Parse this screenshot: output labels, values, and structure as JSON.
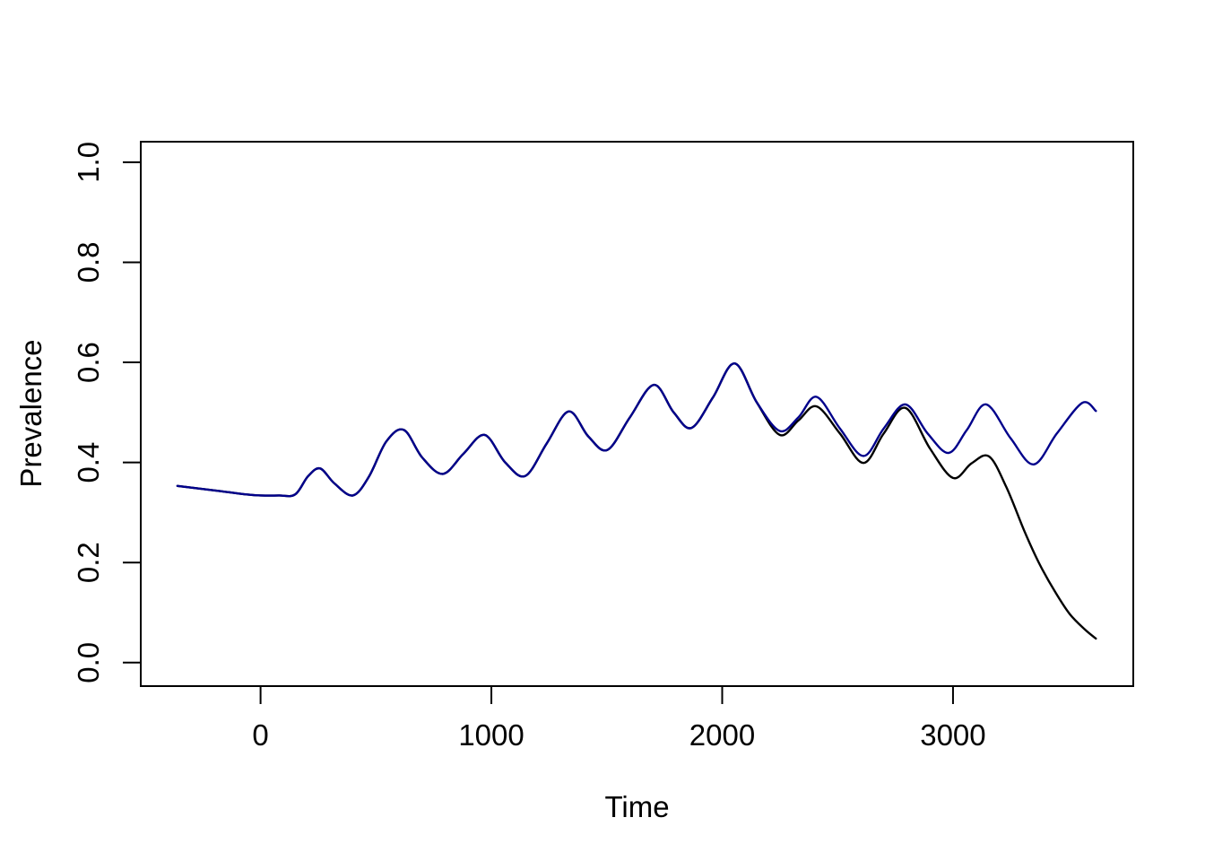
{
  "chart_data": {
    "type": "line",
    "title": "",
    "xlabel": "Time",
    "ylabel": "Prevalence",
    "xlim": [
      -519,
      3781
    ],
    "ylim": [
      -0.047,
      1.041
    ],
    "grid": false,
    "legend": "none",
    "background": "#ffffff",
    "axis_color": "#000000",
    "x_ticks": [
      {
        "v": 0,
        "label": "0"
      },
      {
        "v": 1000,
        "label": "1000"
      },
      {
        "v": 2000,
        "label": "2000"
      },
      {
        "v": 3000,
        "label": "3000"
      }
    ],
    "y_ticks": [
      {
        "v": 0.0,
        "label": "0.0"
      },
      {
        "v": 0.2,
        "label": "0.2"
      },
      {
        "v": 0.4,
        "label": "0.4"
      },
      {
        "v": 0.6,
        "label": "0.6"
      },
      {
        "v": 0.8,
        "label": "0.8"
      },
      {
        "v": 1.0,
        "label": "1.0"
      }
    ],
    "series": [
      {
        "name": "black-line",
        "color": "#000000",
        "points": [
          [
            -360,
            0.353
          ],
          [
            -180,
            0.343
          ],
          [
            -60,
            0.336
          ],
          [
            0,
            0.334
          ],
          [
            80,
            0.334
          ],
          [
            150,
            0.336
          ],
          [
            205,
            0.372
          ],
          [
            258,
            0.388
          ],
          [
            320,
            0.358
          ],
          [
            400,
            0.334
          ],
          [
            470,
            0.372
          ],
          [
            545,
            0.442
          ],
          [
            621,
            0.465
          ],
          [
            700,
            0.41
          ],
          [
            790,
            0.377
          ],
          [
            880,
            0.418
          ],
          [
            971,
            0.455
          ],
          [
            1060,
            0.4
          ],
          [
            1147,
            0.373
          ],
          [
            1240,
            0.438
          ],
          [
            1335,
            0.502
          ],
          [
            1420,
            0.452
          ],
          [
            1503,
            0.425
          ],
          [
            1600,
            0.49
          ],
          [
            1704,
            0.555
          ],
          [
            1790,
            0.5
          ],
          [
            1867,
            0.469
          ],
          [
            1960,
            0.53
          ],
          [
            2054,
            0.598
          ],
          [
            2150,
            0.52
          ],
          [
            2249,
            0.455
          ],
          [
            2330,
            0.484
          ],
          [
            2409,
            0.512
          ],
          [
            2510,
            0.458
          ],
          [
            2612,
            0.399
          ],
          [
            2700,
            0.458
          ],
          [
            2794,
            0.509
          ],
          [
            2900,
            0.428
          ],
          [
            3000,
            0.369
          ],
          [
            3080,
            0.398
          ],
          [
            3156,
            0.412
          ],
          [
            3230,
            0.352
          ],
          [
            3311,
            0.261
          ],
          [
            3377,
            0.195
          ],
          [
            3443,
            0.141
          ],
          [
            3506,
            0.097
          ],
          [
            3572,
            0.066
          ],
          [
            3619,
            0.048
          ]
        ]
      },
      {
        "name": "blue-line",
        "color": "#00008B",
        "points": [
          [
            -360,
            0.353
          ],
          [
            -180,
            0.343
          ],
          [
            -60,
            0.336
          ],
          [
            0,
            0.334
          ],
          [
            80,
            0.334
          ],
          [
            150,
            0.336
          ],
          [
            205,
            0.372
          ],
          [
            258,
            0.388
          ],
          [
            320,
            0.358
          ],
          [
            400,
            0.334
          ],
          [
            470,
            0.372
          ],
          [
            545,
            0.442
          ],
          [
            621,
            0.465
          ],
          [
            700,
            0.41
          ],
          [
            790,
            0.377
          ],
          [
            880,
            0.418
          ],
          [
            971,
            0.455
          ],
          [
            1060,
            0.4
          ],
          [
            1147,
            0.373
          ],
          [
            1240,
            0.438
          ],
          [
            1335,
            0.502
          ],
          [
            1420,
            0.452
          ],
          [
            1503,
            0.425
          ],
          [
            1600,
            0.49
          ],
          [
            1704,
            0.555
          ],
          [
            1790,
            0.5
          ],
          [
            1867,
            0.469
          ],
          [
            1960,
            0.53
          ],
          [
            2054,
            0.598
          ],
          [
            2150,
            0.52
          ],
          [
            2249,
            0.463
          ],
          [
            2330,
            0.49
          ],
          [
            2409,
            0.531
          ],
          [
            2510,
            0.468
          ],
          [
            2612,
            0.413
          ],
          [
            2700,
            0.468
          ],
          [
            2794,
            0.516
          ],
          [
            2890,
            0.458
          ],
          [
            2981,
            0.419
          ],
          [
            3060,
            0.465
          ],
          [
            3144,
            0.516
          ],
          [
            3250,
            0.448
          ],
          [
            3350,
            0.396
          ],
          [
            3450,
            0.458
          ],
          [
            3560,
            0.519
          ],
          [
            3619,
            0.503
          ]
        ]
      }
    ]
  }
}
